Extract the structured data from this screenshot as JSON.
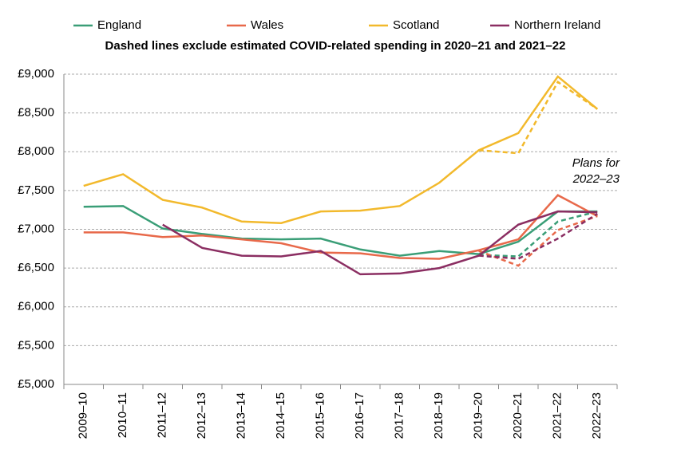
{
  "chart_data": {
    "type": "line",
    "subtitle": "Dashed lines exclude estimated COVID-related spending in 2020–21 and 2021–22",
    "annotation": [
      "Plans for",
      "2022–23"
    ],
    "categories": [
      "2009–10",
      "2010–11",
      "2011–12",
      "2012–13",
      "2013–14",
      "2014–15",
      "2015–16",
      "2016–17",
      "2017–18",
      "2018–19",
      "2019–20",
      "2020–21",
      "2021–22",
      "2022–23"
    ],
    "series": [
      {
        "name": "England",
        "color": "#3a9e77",
        "values": [
          7290,
          7300,
          7010,
          6940,
          6880,
          6870,
          6880,
          6740,
          6660,
          6720,
          6680,
          6840,
          7230,
          7230
        ],
        "dashed_values": [
          null,
          null,
          null,
          null,
          null,
          null,
          null,
          null,
          null,
          null,
          6670,
          6650,
          7100,
          7230
        ]
      },
      {
        "name": "Wales",
        "color": "#e8694a",
        "values": [
          6960,
          6960,
          6900,
          6920,
          6870,
          6820,
          6700,
          6690,
          6630,
          6620,
          6730,
          6870,
          7440,
          7170
        ],
        "dashed_values": [
          null,
          null,
          null,
          null,
          null,
          null,
          null,
          null,
          null,
          null,
          6720,
          6530,
          6990,
          7170
        ]
      },
      {
        "name": "Scotland",
        "color": "#f2b92c",
        "values": [
          7560,
          7710,
          7380,
          7280,
          7100,
          7080,
          7230,
          7240,
          7300,
          7600,
          8020,
          8240,
          8970,
          8550
        ],
        "dashed_values": [
          null,
          null,
          null,
          null,
          null,
          null,
          null,
          null,
          null,
          null,
          8020,
          7980,
          8900,
          8550
        ]
      },
      {
        "name": "Northern Ireland",
        "color": "#8b2e62",
        "values": [
          null,
          null,
          7060,
          6760,
          6660,
          6650,
          6720,
          6420,
          6430,
          6500,
          6660,
          7060,
          7230,
          7220
        ],
        "dashed_values": [
          null,
          null,
          null,
          null,
          null,
          null,
          null,
          null,
          null,
          null,
          6660,
          6620,
          6880,
          7200
        ]
      }
    ],
    "ylim": [
      5000,
      9000
    ],
    "yticks": [
      {
        "value": 5000,
        "label": "£5,000"
      },
      {
        "value": 5500,
        "label": "£5,500"
      },
      {
        "value": 6000,
        "label": "£6,000"
      },
      {
        "value": 6500,
        "label": "£6,500"
      },
      {
        "value": 7000,
        "label": "£7,000"
      },
      {
        "value": 7500,
        "label": "£7,500"
      },
      {
        "value": 8000,
        "label": "£8,000"
      },
      {
        "value": 8500,
        "label": "£8,500"
      },
      {
        "value": 9000,
        "label": "£9,000"
      }
    ],
    "grid": true,
    "legend": "top"
  }
}
